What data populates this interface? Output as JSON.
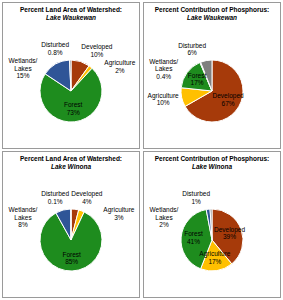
{
  "chart_data": [
    {
      "type": "pie",
      "title": "Percent Land Area of Watershed:",
      "subtitle": "Lake Waukewan",
      "categories": [
        "Developed",
        "Agriculture",
        "Forest",
        "Wetlands/Lakes",
        "Disturbed"
      ],
      "values": [
        10,
        2,
        73,
        15,
        0.8
      ],
      "value_labels": [
        "10%",
        "2%",
        "73%",
        "15%",
        "0.8%"
      ],
      "colors": [
        "#a63a0a",
        "#ffc000",
        "#1e8c1e",
        "#2f5597",
        "#7f7f7f"
      ],
      "data_labels": true
    },
    {
      "type": "pie",
      "title": "Percent Contribution of Phosphorus:",
      "subtitle": "Lake Waukewan",
      "categories": [
        "Developed",
        "Agriculture",
        "Forest",
        "Wetlands/Lakes",
        "Disturbed"
      ],
      "values": [
        67,
        10,
        17,
        0.4,
        6
      ],
      "value_labels": [
        "67%",
        "10%",
        "17%",
        "0.4%",
        "6%"
      ],
      "colors": [
        "#a63a0a",
        "#ffc000",
        "#1e8c1e",
        "#2f5597",
        "#7f7f7f"
      ],
      "data_labels": true
    },
    {
      "type": "pie",
      "title": "Percent Land Area of Watershed:",
      "subtitle": "Lake Winona",
      "categories": [
        "Developed",
        "Agriculture",
        "Forest",
        "Wetlands/Lakes",
        "Disturbed"
      ],
      "values": [
        4,
        3,
        85,
        8,
        0.1
      ],
      "value_labels": [
        "4%",
        "3%",
        "85%",
        "8%",
        "0.1%"
      ],
      "colors": [
        "#a63a0a",
        "#ffc000",
        "#1e8c1e",
        "#2f5597",
        "#7f7f7f"
      ],
      "data_labels": true
    },
    {
      "type": "pie",
      "title": "Percent Contribution of Phosphorus:",
      "subtitle": "Lake Winona",
      "categories": [
        "Developed",
        "Agriculture",
        "Forest",
        "Wetlands/Lakes",
        "Disturbed"
      ],
      "values": [
        39,
        17,
        41,
        2,
        1
      ],
      "value_labels": [
        "39%",
        "17%",
        "41%",
        "2%",
        "1%"
      ],
      "colors": [
        "#a63a0a",
        "#ffc000",
        "#1e8c1e",
        "#2f5597",
        "#7f7f7f"
      ],
      "data_labels": true
    }
  ]
}
